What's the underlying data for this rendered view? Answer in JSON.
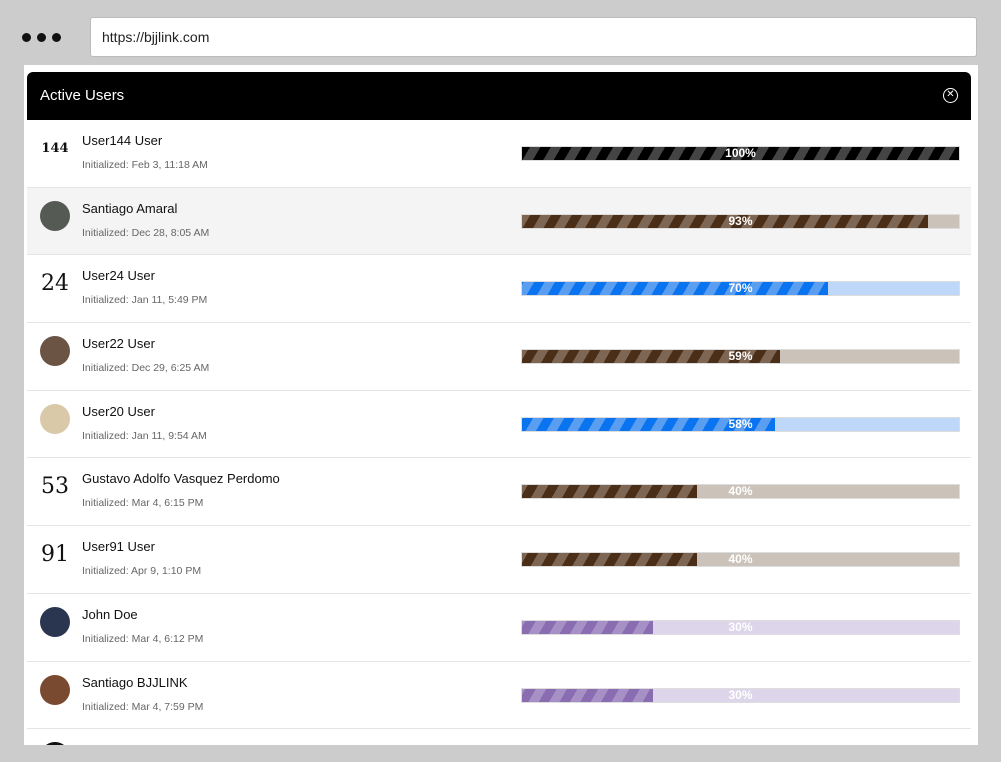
{
  "browser": {
    "url": "https://bjjlink.com"
  },
  "modal": {
    "title": "Active Users",
    "close_icon": "close-circle-icon"
  },
  "themes": {
    "black": {
      "dark": "#000000",
      "light": "#444444",
      "track": "#cccccc"
    },
    "brown": {
      "dark": "#4a2e18",
      "light": "#7d6654",
      "track": "#cbc3ba"
    },
    "blue": {
      "dark": "#0a74f0",
      "light": "#5a9ef2",
      "track": "#bfd8fa"
    },
    "purple": {
      "dark": "#8a6cb0",
      "light": "#a690c6",
      "track": "#ddd5ea"
    }
  },
  "users": [
    {
      "name": "User144 User",
      "initialized": "Initialized: Feb 3, 11:18 AM",
      "progress": 100,
      "label": "100%",
      "theme": "black",
      "avatar_text": "144",
      "avatar_bg": "#ffffff"
    },
    {
      "name": "Santiago Amaral",
      "initialized": "Initialized: Dec 28, 8:05 AM",
      "progress": 93,
      "label": "93%",
      "theme": "brown",
      "avatar_text": "",
      "avatar_bg": "#555a55"
    },
    {
      "name": "User24 User",
      "initialized": "Initialized: Jan 11, 5:49 PM",
      "progress": 70,
      "label": "70%",
      "theme": "blue",
      "avatar_text": "24",
      "avatar_bg": "#ffffff"
    },
    {
      "name": "User22 User",
      "initialized": "Initialized: Dec 29, 6:25 AM",
      "progress": 59,
      "label": "59%",
      "theme": "brown",
      "avatar_text": "",
      "avatar_bg": "#6b5444"
    },
    {
      "name": "User20 User",
      "initialized": "Initialized: Jan 11, 9:54 AM",
      "progress": 58,
      "label": "58%",
      "theme": "blue",
      "avatar_text": "",
      "avatar_bg": "#d9c9a8"
    },
    {
      "name": "Gustavo Adolfo Vasquez Perdomo",
      "initialized": "Initialized: Mar 4, 6:15 PM",
      "progress": 40,
      "label": "40%",
      "theme": "brown",
      "avatar_text": "53",
      "avatar_bg": "#ffffff"
    },
    {
      "name": "User91 User",
      "initialized": "Initialized: Apr 9, 1:10 PM",
      "progress": 40,
      "label": "40%",
      "theme": "brown",
      "avatar_text": "91",
      "avatar_bg": "#ffffff"
    },
    {
      "name": "John Doe",
      "initialized": "Initialized: Mar 4, 6:12 PM",
      "progress": 30,
      "label": "30%",
      "theme": "purple",
      "avatar_text": "",
      "avatar_bg": "#2a3550"
    },
    {
      "name": "Santiago BJJLINK",
      "initialized": "Initialized: Mar 4, 7:59 PM",
      "progress": 30,
      "label": "30%",
      "theme": "purple",
      "avatar_text": "",
      "avatar_bg": "#7a4a30"
    }
  ]
}
